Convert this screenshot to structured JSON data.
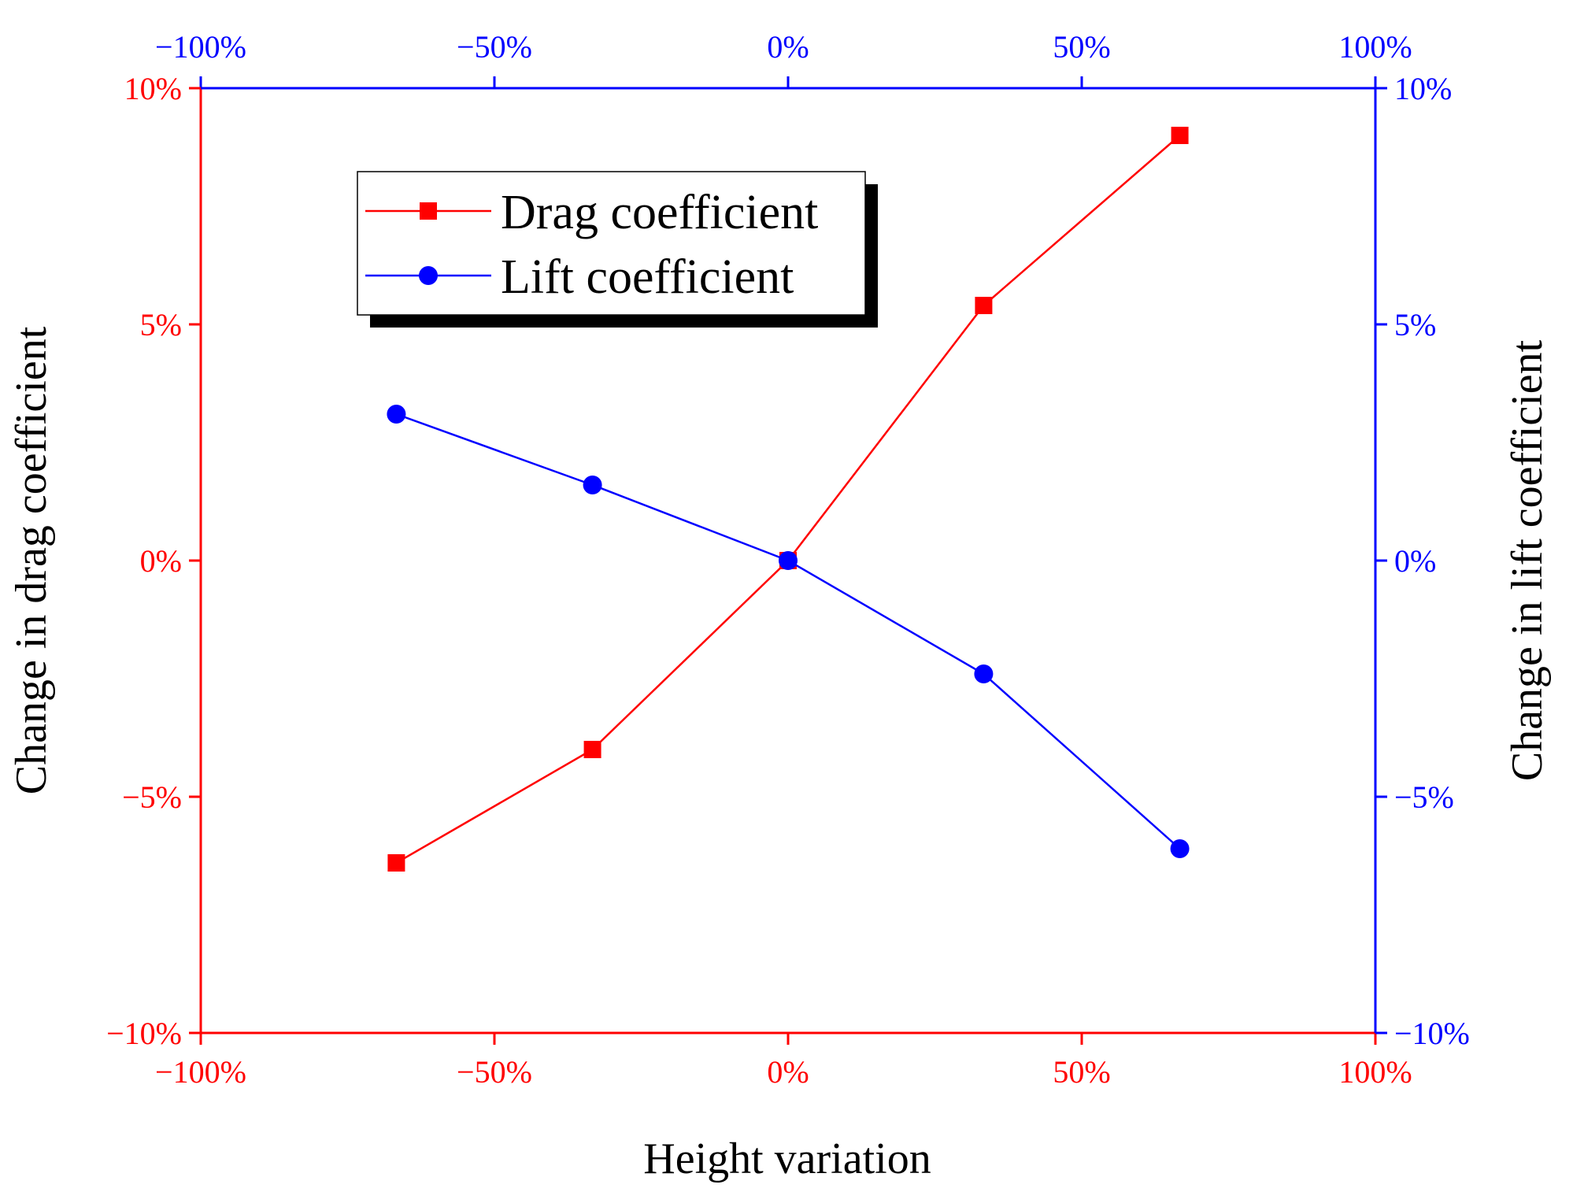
{
  "colors": {
    "drag": "#ff0000",
    "lift": "#0000ff",
    "text": "#000000",
    "background": "#ffffff"
  },
  "chart_data": {
    "type": "line",
    "x": [
      -66.7,
      -33.3,
      0,
      33.3,
      66.7
    ],
    "xlim": [
      -100,
      100
    ],
    "xticks": [
      -100,
      -50,
      0,
      50,
      100
    ],
    "xtick_labels": [
      "−100%",
      "−50%",
      "0%",
      "50%",
      "100%"
    ],
    "xlabel": "Height variation",
    "ylabel_left": "Change in drag coefficient",
    "ylabel_right": "Change in lift coefficient",
    "ylim_left": [
      -10,
      10
    ],
    "ylim_right": [
      -10,
      10
    ],
    "yticks": [
      -10,
      -5,
      0,
      5,
      10
    ],
    "ytick_labels": [
      "−10%",
      "−5%",
      "0%",
      "5%",
      "10%"
    ],
    "legend_position": "upper-left",
    "grid": false,
    "series": [
      {
        "name": "Drag coefficient",
        "axis": "left",
        "marker": "square",
        "color": "#ff0000",
        "values": [
          -6.4,
          -4.0,
          0.0,
          5.4,
          9.0
        ]
      },
      {
        "name": "Lift coefficient",
        "axis": "right",
        "marker": "circle",
        "color": "#0000ff",
        "values": [
          3.1,
          1.6,
          0.0,
          -2.4,
          -6.1
        ]
      }
    ]
  }
}
